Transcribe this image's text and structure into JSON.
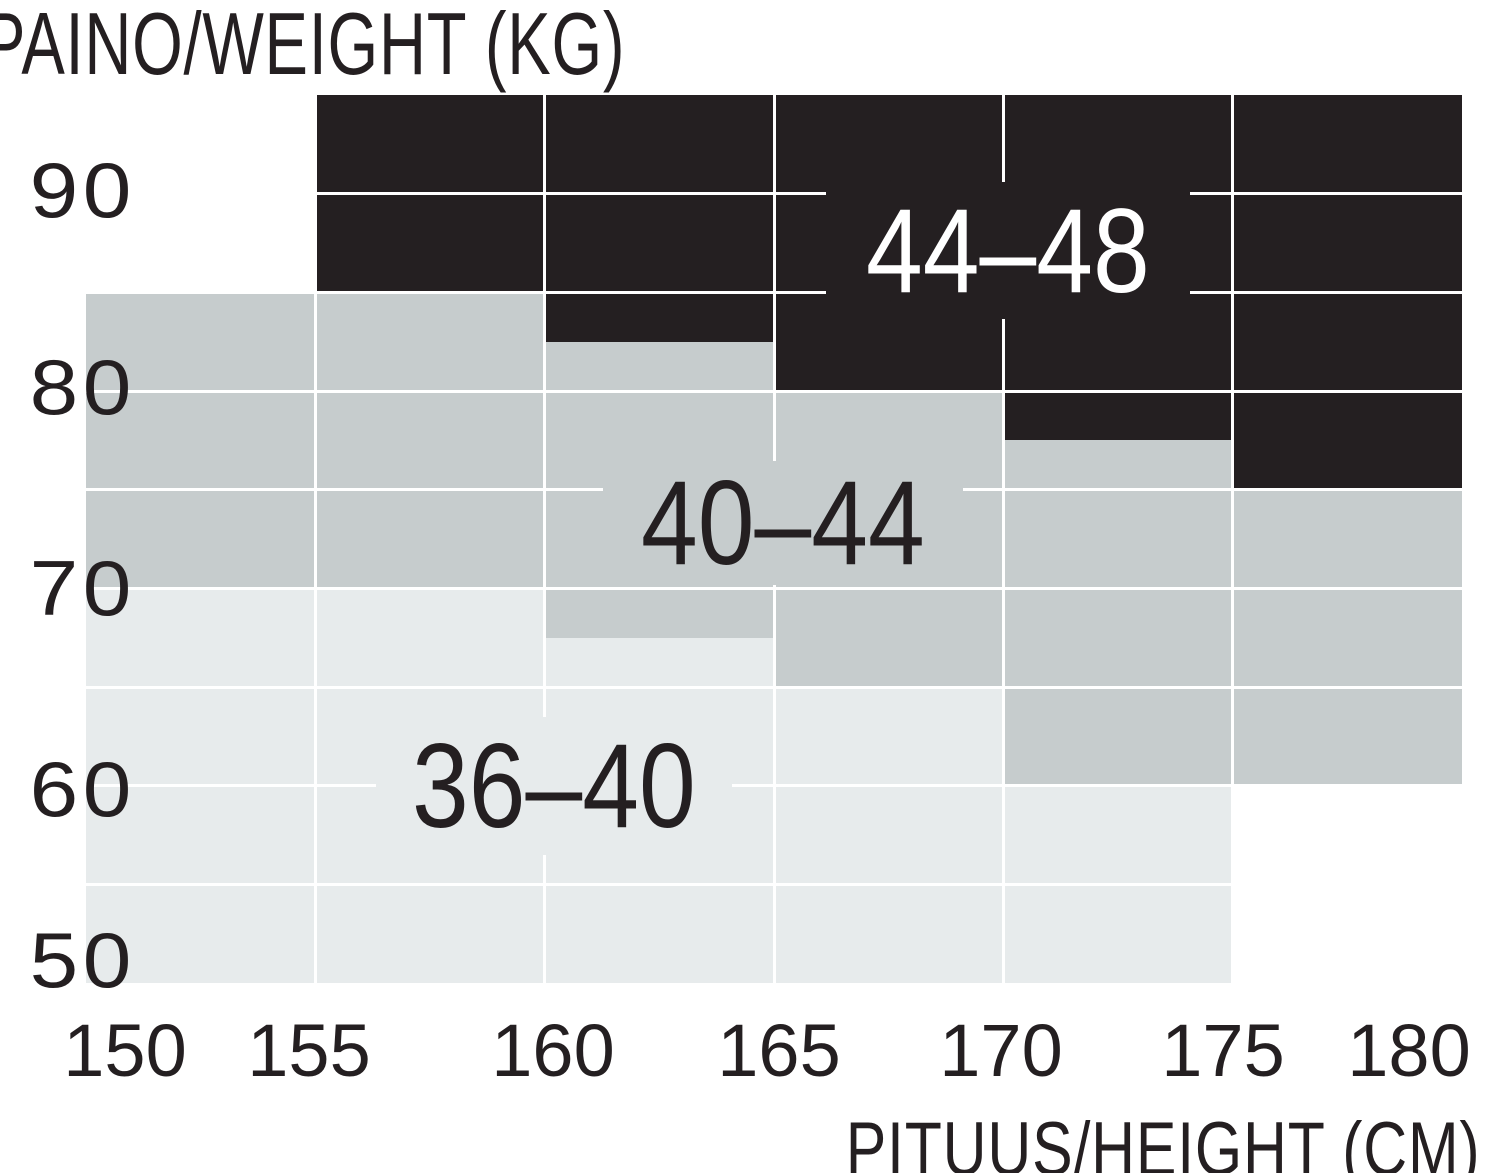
{
  "title": "PAINO/WEIGHT (KG)",
  "x_axis_title": "PITUUS/HEIGHT (CM)",
  "colors": {
    "black": "#241f21",
    "mid": "#c6cccd",
    "light": "#e7ebec",
    "white": "#ffffff",
    "gridline": "#ffffff",
    "border": "#3f4143",
    "text_dark": "#241f21",
    "text_light": "#ffffff"
  },
  "chart_data": {
    "type": "heatmap",
    "title": "PAINO/WEIGHT (KG)",
    "xlabel": "PITUUS/HEIGHT (CM)",
    "x_unit": "cm",
    "y_unit": "kg",
    "x_range": [
      150,
      180
    ],
    "y_range": [
      50,
      95
    ],
    "x_tick_labels": [
      "150",
      "155",
      "160",
      "165",
      "170",
      "175",
      "180"
    ],
    "y_tick_labels": [
      "90",
      "80",
      "70",
      "60",
      "50"
    ],
    "x_tick_values": [
      150,
      155,
      160,
      165,
      170,
      175,
      180
    ],
    "y_tick_values": [
      90,
      80,
      70,
      60,
      50
    ],
    "grid": "white gridlines every 5 cm and 5 kg",
    "legend_position": "labels inside regions",
    "sizes": [
      "36-40",
      "40-44",
      "44-48"
    ],
    "columns": [
      {
        "height_cm": [
          150,
          155
        ],
        "bands": [
          {
            "size": null,
            "weight_kg": [
              85,
              95
            ],
            "color": "white"
          },
          {
            "size": "40-44",
            "weight_kg": [
              70,
              85
            ],
            "color": "mid"
          },
          {
            "size": "36-40",
            "weight_kg": [
              50,
              70
            ],
            "color": "light"
          }
        ]
      },
      {
        "height_cm": [
          155,
          160
        ],
        "bands": [
          {
            "size": "44-48",
            "weight_kg": [
              85,
              95
            ],
            "color": "black"
          },
          {
            "size": "40-44",
            "weight_kg": [
              70,
              85
            ],
            "color": "mid"
          },
          {
            "size": "36-40",
            "weight_kg": [
              50,
              70
            ],
            "color": "light"
          }
        ]
      },
      {
        "height_cm": [
          160,
          165
        ],
        "bands": [
          {
            "size": "44-48",
            "weight_kg": [
              82.5,
              95
            ],
            "color": "black"
          },
          {
            "size": "40-44",
            "weight_kg": [
              67.5,
              82.5
            ],
            "color": "mid"
          },
          {
            "size": "36-40",
            "weight_kg": [
              50,
              67.5
            ],
            "color": "light"
          }
        ]
      },
      {
        "height_cm": [
          165,
          170
        ],
        "bands": [
          {
            "size": "44-48",
            "weight_kg": [
              80,
              95
            ],
            "color": "black"
          },
          {
            "size": "40-44",
            "weight_kg": [
              65,
              80
            ],
            "color": "mid"
          },
          {
            "size": "36-40",
            "weight_kg": [
              50,
              65
            ],
            "color": "light"
          }
        ]
      },
      {
        "height_cm": [
          170,
          175
        ],
        "bands": [
          {
            "size": "44-48",
            "weight_kg": [
              77.5,
              95
            ],
            "color": "black"
          },
          {
            "size": "40-44",
            "weight_kg": [
              60,
              77.5
            ],
            "color": "mid"
          },
          {
            "size": "36-40",
            "weight_kg": [
              50,
              60
            ],
            "color": "light"
          }
        ]
      },
      {
        "height_cm": [
          175,
          180
        ],
        "bands": [
          {
            "size": "44-48",
            "weight_kg": [
              75,
              95
            ],
            "color": "black"
          },
          {
            "size": "40-44",
            "weight_kg": [
              60,
              75
            ],
            "color": "mid"
          },
          {
            "size": null,
            "weight_kg": [
              50,
              60
            ],
            "color": "white"
          }
        ]
      }
    ],
    "region_labels": [
      {
        "text": "44–48",
        "at_cm": 170.1,
        "at_kg": 87.1,
        "style": "black"
      },
      {
        "text": "40–44",
        "at_cm": 165.2,
        "at_kg": 73.3,
        "style": "mid"
      },
      {
        "text": "36–40",
        "at_cm": 160.2,
        "at_kg": 60.0,
        "style": "light"
      }
    ]
  }
}
